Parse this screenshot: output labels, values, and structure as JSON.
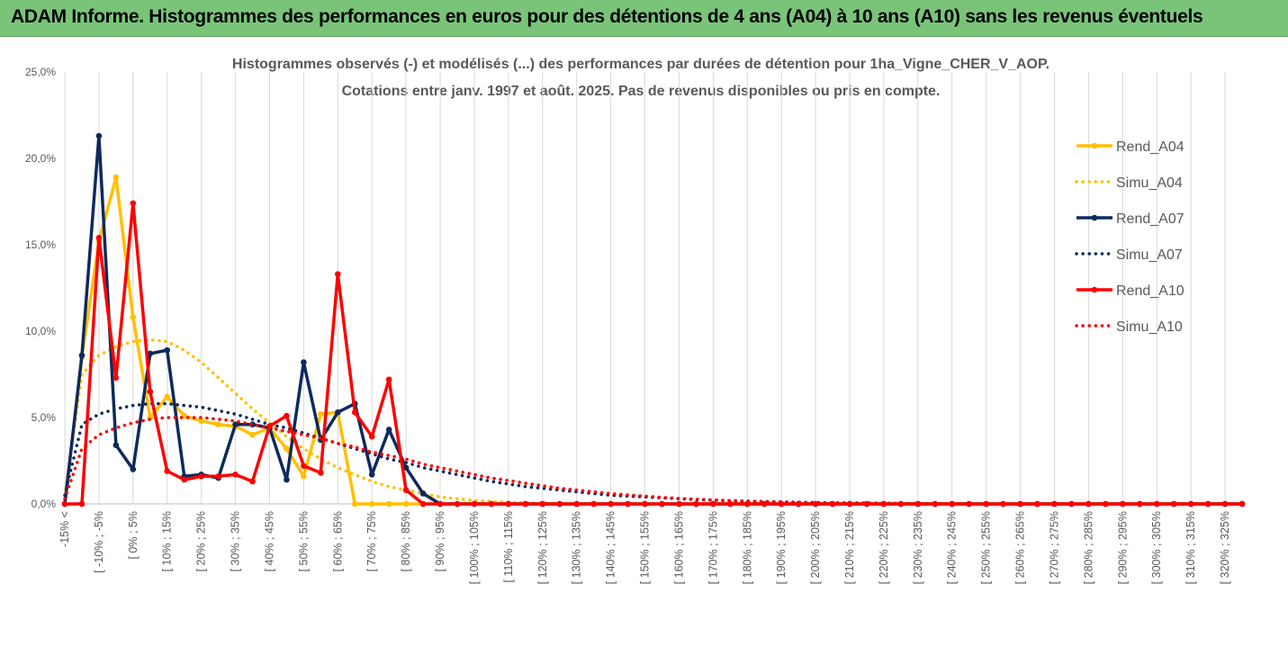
{
  "banner": {
    "title": "ADAM Informe. Histogrammes des performances en euros pour des détentions de 4 ans (A04) à 10 ans (A10) sans les revenus éventuels"
  },
  "colors": {
    "banner": "#7ac47a",
    "a04": "#ffc000",
    "a07": "#0e2a5c",
    "a10": "#ff0000",
    "grid": "#d9d9d9"
  },
  "chart_data": {
    "type": "line",
    "title": "Histogrammes observés (-) et modélisés (...) des performances par durées de détention pour 1ha_Vigne_CHER_V_AOP.",
    "subtitle": "Cotations entre janv. 1997 et août. 2025. Pas de revenus disponibles ou pris en compte.",
    "ylim": [
      0,
      25
    ],
    "yticks": [
      "0,0%",
      "5,0%",
      "10,0%",
      "15,0%",
      "20,0%",
      "25,0%"
    ],
    "grid": "vertical",
    "legend_position": "right",
    "x_labels": [
      "-15% <",
      "[ -10% ; -5%",
      "[ 0% ; 5%",
      "[ 10% ; 15%",
      "[ 20% ; 25%",
      "[ 30% ; 35%",
      "[ 40% ; 45%",
      "[ 50% ; 55%",
      "[ 60% ; 65%",
      "[ 70% ; 75%",
      "[ 80% ; 85%",
      "[ 90% ; 95%",
      "[ 100% ; 105%",
      "[ 110% ; 115%",
      "[ 120% ; 125%",
      "[ 130% ; 135%",
      "[ 140% ; 145%",
      "[ 150% ; 155%",
      "[ 160% ; 165%",
      "[ 170% ; 175%",
      "[ 180% ; 185%",
      "[ 190% ; 195%",
      "[ 200% ; 205%",
      "[ 210% ; 215%",
      "[ 220% ; 225%",
      "[ 230% ; 235%",
      "[ 240% ; 245%",
      "[ 250% ; 255%",
      "[ 260% ; 265%",
      "[ 270% ; 275%",
      "[ 280% ; 285%",
      "[ 290% ; 295%",
      "[ 300% ; 305%",
      "[ 310% ; 315%",
      "[ 320% ; 325%"
    ],
    "series": [
      {
        "name": "Rend_A04",
        "style": "solid",
        "color": "#ffc000",
        "values": [
          0,
          8.5,
          15.2,
          18.9,
          10.8,
          5.0,
          6.2,
          5.1,
          4.8,
          4.6,
          4.5,
          4.0,
          4.4,
          3.2,
          1.6,
          5.2,
          5.3,
          0,
          0,
          0,
          0,
          0,
          0,
          0,
          0,
          0,
          0,
          0,
          0,
          0,
          0,
          0,
          0,
          0,
          0,
          0,
          0,
          0,
          0,
          0,
          0,
          0,
          0,
          0,
          0,
          0,
          0,
          0,
          0,
          0,
          0,
          0,
          0,
          0,
          0,
          0,
          0,
          0,
          0,
          0,
          0,
          0,
          0,
          0,
          0,
          0,
          0,
          0,
          0,
          0
        ]
      },
      {
        "name": "Simu_A04",
        "style": "dotted",
        "color": "#ffc000",
        "values": [
          0.5,
          7.5,
          8.6,
          9.1,
          9.4,
          9.5,
          9.4,
          8.9,
          8.2,
          7.3,
          6.4,
          5.5,
          4.7,
          3.9,
          3.2,
          2.6,
          2.1,
          1.7,
          1.3,
          1.0,
          0.8,
          0.6,
          0.4,
          0.3,
          0.2,
          0.15,
          0.1,
          0.07,
          0.05,
          0.03,
          0.02,
          0.01,
          0,
          0,
          0,
          0,
          0,
          0,
          0,
          0,
          0,
          0,
          0,
          0,
          0,
          0,
          0,
          0,
          0,
          0,
          0,
          0,
          0,
          0,
          0,
          0,
          0,
          0,
          0,
          0,
          0,
          0,
          0,
          0,
          0,
          0,
          0,
          0,
          0,
          0
        ]
      },
      {
        "name": "Rend_A07",
        "style": "solid",
        "color": "#0e2a5c",
        "values": [
          0,
          8.6,
          21.3,
          3.4,
          2.0,
          8.7,
          8.9,
          1.6,
          1.7,
          1.5,
          4.6,
          4.6,
          4.4,
          1.4,
          8.2,
          3.7,
          5.3,
          5.8,
          1.7,
          4.3,
          2.1,
          0.6,
          0,
          0,
          0,
          0,
          0,
          0,
          0,
          0,
          0,
          0,
          0,
          0,
          0,
          0,
          0,
          0,
          0,
          0,
          0,
          0,
          0,
          0,
          0,
          0,
          0,
          0,
          0,
          0,
          0,
          0,
          0,
          0,
          0,
          0,
          0,
          0,
          0,
          0,
          0,
          0,
          0,
          0,
          0,
          0,
          0,
          0,
          0,
          0
        ]
      },
      {
        "name": "Simu_A07",
        "style": "dotted",
        "color": "#0e2a5c",
        "values": [
          0.5,
          4.6,
          5.2,
          5.5,
          5.7,
          5.8,
          5.8,
          5.7,
          5.6,
          5.4,
          5.2,
          4.9,
          4.6,
          4.4,
          4.1,
          3.8,
          3.5,
          3.2,
          2.9,
          2.6,
          2.4,
          2.1,
          1.9,
          1.7,
          1.5,
          1.3,
          1.15,
          1.0,
          0.9,
          0.8,
          0.7,
          0.6,
          0.5,
          0.45,
          0.4,
          0.35,
          0.3,
          0.25,
          0.22,
          0.19,
          0.16,
          0.14,
          0.12,
          0.1,
          0.08,
          0.07,
          0.06,
          0.05,
          0.04,
          0.03,
          0.02,
          0.02,
          0.01,
          0.01,
          0,
          0,
          0,
          0,
          0,
          0,
          0,
          0,
          0,
          0,
          0,
          0,
          0,
          0,
          0,
          0
        ]
      },
      {
        "name": "Rend_A10",
        "style": "solid",
        "color": "#ff0000",
        "values": [
          0,
          0,
          15.4,
          7.3,
          17.4,
          6.5,
          1.9,
          1.4,
          1.6,
          1.6,
          1.7,
          1.3,
          4.5,
          5.1,
          2.2,
          1.8,
          13.3,
          5.3,
          3.9,
          7.2,
          0.8,
          0,
          0,
          0,
          0,
          0,
          0,
          0,
          0,
          0,
          0,
          0,
          0,
          0,
          0,
          0,
          0,
          0,
          0,
          0,
          0,
          0,
          0,
          0,
          0,
          0,
          0,
          0,
          0,
          0,
          0,
          0,
          0,
          0,
          0,
          0,
          0,
          0,
          0,
          0,
          0,
          0,
          0,
          0,
          0,
          0,
          0,
          0,
          0,
          0
        ]
      },
      {
        "name": "Simu_A10",
        "style": "dotted",
        "color": "#ff0000",
        "values": [
          0.3,
          3.2,
          4.0,
          4.4,
          4.7,
          4.9,
          5.0,
          5.0,
          5.0,
          4.9,
          4.8,
          4.6,
          4.4,
          4.2,
          4.0,
          3.8,
          3.5,
          3.3,
          3.0,
          2.8,
          2.6,
          2.3,
          2.1,
          1.9,
          1.7,
          1.5,
          1.35,
          1.2,
          1.05,
          0.9,
          0.8,
          0.7,
          0.6,
          0.52,
          0.45,
          0.38,
          0.32,
          0.27,
          0.23,
          0.19,
          0.16,
          0.13,
          0.11,
          0.09,
          0.07,
          0.06,
          0.05,
          0.04,
          0.03,
          0.02,
          0.02,
          0.01,
          0.01,
          0,
          0,
          0,
          0,
          0,
          0,
          0,
          0,
          0,
          0,
          0,
          0,
          0,
          0,
          0,
          0,
          0
        ]
      }
    ]
  }
}
